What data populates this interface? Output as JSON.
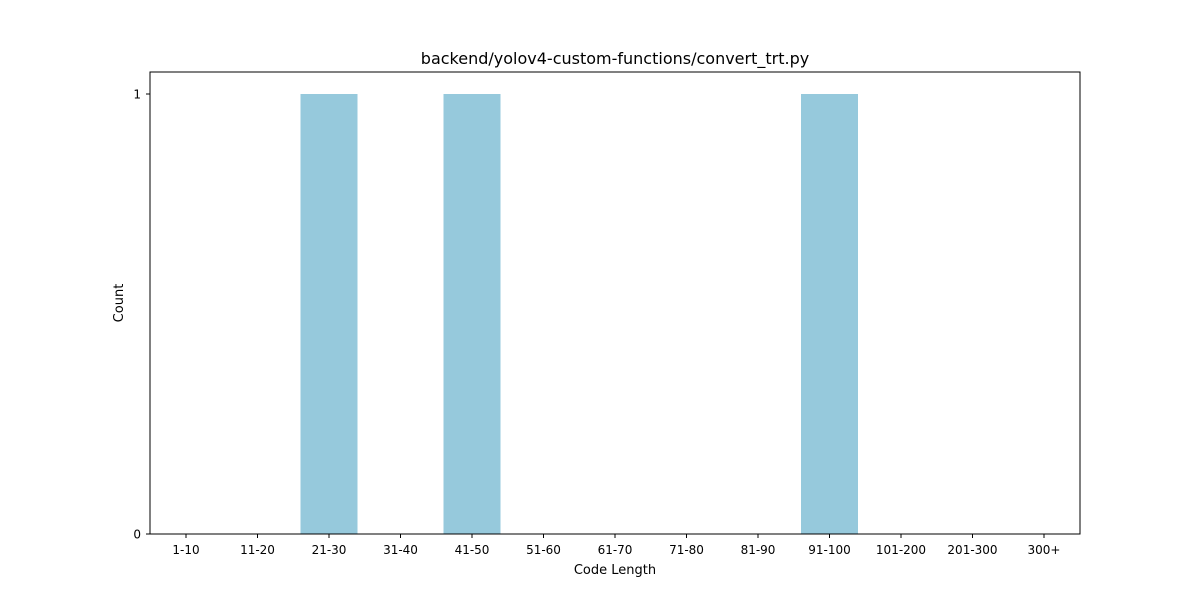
{
  "chart_data": {
    "type": "bar",
    "title": "backend/yolov4-custom-functions/convert_trt.py",
    "xlabel": "Code Length",
    "ylabel": "Count",
    "categories": [
      "1-10",
      "11-20",
      "21-30",
      "31-40",
      "41-50",
      "51-60",
      "61-70",
      "71-80",
      "81-90",
      "91-100",
      "101-200",
      "201-300",
      "300+"
    ],
    "values": [
      0,
      0,
      1,
      0,
      1,
      0,
      0,
      0,
      0,
      1,
      0,
      0,
      0
    ],
    "ylim": [
      0,
      1
    ],
    "yticks": [
      0,
      1
    ],
    "bar_color": "#96c9dc",
    "grid": false,
    "legend": "none"
  }
}
